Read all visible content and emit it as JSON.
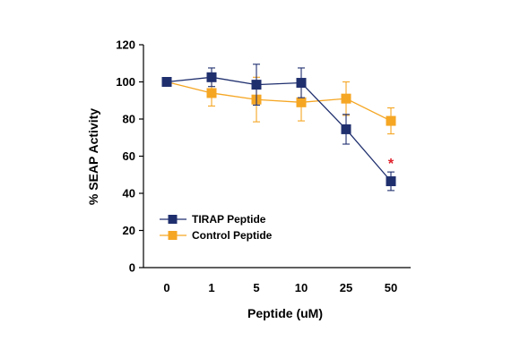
{
  "chart_data": {
    "type": "line",
    "title": "",
    "xlabel": "Peptide (uM)",
    "ylabel": "% SEAP Activity",
    "categories": [
      "0",
      "1",
      "5",
      "10",
      "25",
      "50"
    ],
    "ylim": [
      0,
      120
    ],
    "yticks": [
      "0",
      "20",
      "40",
      "60",
      "80",
      "100",
      "120"
    ],
    "grid": false,
    "legend_position": "bottom-left",
    "series": [
      {
        "name": "TIRAP Peptide",
        "color": "#1f2f6e",
        "marker": "square",
        "values": [
          100,
          102.5,
          98.5,
          99.5,
          74.5,
          46.5
        ],
        "error": [
          0,
          5,
          11,
          8,
          8,
          5
        ]
      },
      {
        "name": "Control Peptide",
        "color": "#f5a623",
        "marker": "square",
        "values": [
          100,
          94,
          90.5,
          89,
          91,
          79
        ],
        "error": [
          0,
          7,
          12,
          10,
          9,
          7
        ]
      }
    ],
    "annotations": [
      {
        "text": "*",
        "category": "50",
        "series": "TIRAP Peptide",
        "color": "#e0202a"
      }
    ]
  }
}
